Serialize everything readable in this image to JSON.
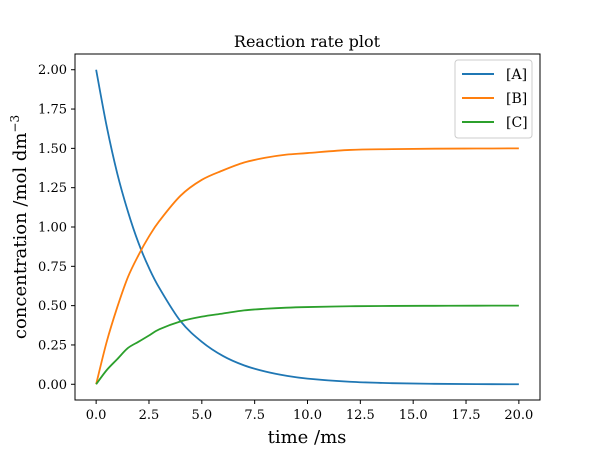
{
  "chart_data": {
    "type": "line",
    "title": "Reaction rate plot",
    "xlabel": "time /ms",
    "ylabel": "concentration /mol dm",
    "ylabel_exponent": "−3",
    "xlim": [
      -1.0,
      21.0
    ],
    "ylim": [
      -0.1,
      2.1
    ],
    "xticks": [
      0.0,
      2.5,
      5.0,
      7.5,
      10.0,
      12.5,
      15.0,
      17.5,
      20.0
    ],
    "yticks": [
      0.0,
      0.25,
      0.5,
      0.75,
      1.0,
      1.25,
      1.5,
      1.75,
      2.0
    ],
    "xtick_labels": [
      "0.0",
      "2.5",
      "5.0",
      "7.5",
      "10.0",
      "12.5",
      "15.0",
      "17.5",
      "20.0"
    ],
    "ytick_labels": [
      "0.00",
      "0.25",
      "0.50",
      "0.75",
      "1.00",
      "1.25",
      "1.50",
      "1.75",
      "2.00"
    ],
    "grid": false,
    "legend_position": "top-right",
    "x": [
      0,
      0.5,
      1,
      1.5,
      2,
      2.5,
      3,
      4,
      5,
      6,
      7,
      8,
      9,
      10,
      12,
      14,
      16,
      18,
      20
    ],
    "series": [
      {
        "name": "[A]",
        "color": "#1f77b4",
        "values": [
          2.0,
          1.64,
          1.34,
          1.1,
          0.9,
          0.74,
          0.61,
          0.4,
          0.27,
          0.18,
          0.12,
          0.081,
          0.054,
          0.036,
          0.016,
          0.007,
          0.003,
          0.001,
          0.0
        ]
      },
      {
        "name": "[B]",
        "color": "#ff7f0e",
        "values": [
          0.0,
          0.27,
          0.49,
          0.68,
          0.82,
          0.94,
          1.04,
          1.2,
          1.3,
          1.36,
          1.41,
          1.44,
          1.46,
          1.47,
          1.49,
          1.495,
          1.498,
          1.499,
          1.5
        ]
      },
      {
        "name": "[C]",
        "color": "#2ca02c",
        "values": [
          0.0,
          0.09,
          0.16,
          0.23,
          0.27,
          0.31,
          0.35,
          0.4,
          0.43,
          0.45,
          0.47,
          0.48,
          0.487,
          0.491,
          0.496,
          0.498,
          0.499,
          0.4998,
          0.5
        ]
      }
    ]
  }
}
